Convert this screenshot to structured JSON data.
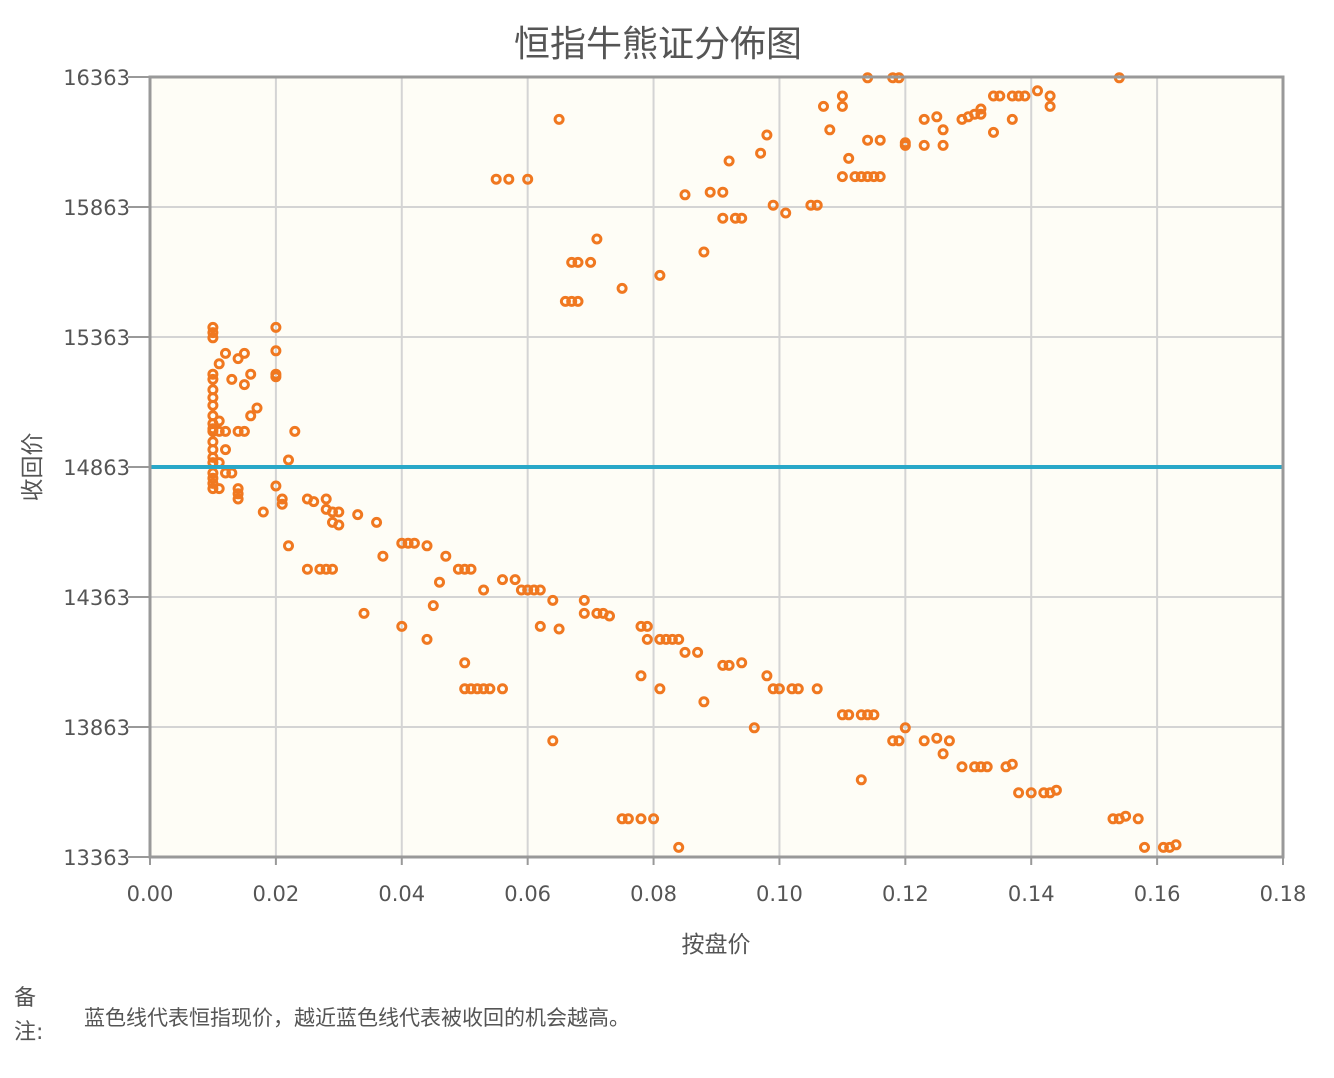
{
  "chart_data": {
    "type": "scatter",
    "title": "恒指牛熊证分佈图",
    "xlabel": "按盘价",
    "ylabel": "收回价",
    "xlim": [
      0.0,
      0.18
    ],
    "ylim": [
      13363,
      16363
    ],
    "x_ticks": [
      "0.00",
      "0.02",
      "0.04",
      "0.06",
      "0.08",
      "0.10",
      "0.12",
      "0.14",
      "0.16",
      "0.18"
    ],
    "y_ticks": [
      "13363",
      "13863",
      "14363",
      "14863",
      "15363",
      "15863",
      "16363"
    ],
    "grid": true,
    "reference_line": {
      "y": 14863,
      "color": "#29a8c8"
    },
    "point_color": "#f07820",
    "series": [
      {
        "points": [
          [
            0.01,
            15400
          ],
          [
            0.01,
            15380
          ],
          [
            0.01,
            15360
          ],
          [
            0.01,
            15220
          ],
          [
            0.01,
            15200
          ],
          [
            0.01,
            15160
          ],
          [
            0.01,
            15130
          ],
          [
            0.01,
            15100
          ],
          [
            0.01,
            15060
          ],
          [
            0.01,
            15030
          ],
          [
            0.01,
            15010
          ],
          [
            0.01,
            15000
          ],
          [
            0.01,
            14960
          ],
          [
            0.01,
            14930
          ],
          [
            0.01,
            14900
          ],
          [
            0.01,
            14880
          ],
          [
            0.01,
            14840
          ],
          [
            0.01,
            14820
          ],
          [
            0.01,
            14800
          ],
          [
            0.01,
            14780
          ],
          [
            0.011,
            15260
          ],
          [
            0.011,
            15040
          ],
          [
            0.011,
            15000
          ],
          [
            0.011,
            14880
          ],
          [
            0.011,
            14780
          ],
          [
            0.012,
            15300
          ],
          [
            0.012,
            15000
          ],
          [
            0.012,
            14930
          ],
          [
            0.012,
            14840
          ],
          [
            0.013,
            15200
          ],
          [
            0.013,
            14840
          ],
          [
            0.014,
            15280
          ],
          [
            0.014,
            15000
          ],
          [
            0.014,
            14780
          ],
          [
            0.014,
            14760
          ],
          [
            0.014,
            14740
          ],
          [
            0.015,
            15300
          ],
          [
            0.015,
            15180
          ],
          [
            0.015,
            15000
          ],
          [
            0.016,
            15220
          ],
          [
            0.016,
            15060
          ],
          [
            0.017,
            15090
          ],
          [
            0.018,
            14690
          ],
          [
            0.02,
            15400
          ],
          [
            0.02,
            15310
          ],
          [
            0.02,
            15220
          ],
          [
            0.02,
            15210
          ],
          [
            0.02,
            14790
          ],
          [
            0.021,
            14740
          ],
          [
            0.021,
            14720
          ],
          [
            0.022,
            14560
          ],
          [
            0.022,
            14890
          ],
          [
            0.023,
            15000
          ],
          [
            0.025,
            14740
          ],
          [
            0.025,
            14470
          ],
          [
            0.026,
            14730
          ],
          [
            0.027,
            14470
          ],
          [
            0.028,
            14740
          ],
          [
            0.028,
            14700
          ],
          [
            0.028,
            14470
          ],
          [
            0.029,
            14690
          ],
          [
            0.029,
            14650
          ],
          [
            0.029,
            14470
          ],
          [
            0.03,
            14690
          ],
          [
            0.03,
            14640
          ],
          [
            0.033,
            14680
          ],
          [
            0.034,
            14300
          ],
          [
            0.036,
            14650
          ],
          [
            0.037,
            14520
          ],
          [
            0.04,
            14570
          ],
          [
            0.04,
            14250
          ],
          [
            0.041,
            14570
          ],
          [
            0.042,
            14570
          ],
          [
            0.044,
            14560
          ],
          [
            0.044,
            14200
          ],
          [
            0.045,
            14330
          ],
          [
            0.046,
            14420
          ],
          [
            0.047,
            14520
          ],
          [
            0.049,
            14470
          ],
          [
            0.05,
            14470
          ],
          [
            0.05,
            14110
          ],
          [
            0.05,
            14010
          ],
          [
            0.051,
            14470
          ],
          [
            0.051,
            14010
          ],
          [
            0.052,
            14010
          ],
          [
            0.053,
            14390
          ],
          [
            0.053,
            14010
          ],
          [
            0.054,
            14010
          ],
          [
            0.055,
            15970
          ],
          [
            0.056,
            14430
          ],
          [
            0.056,
            14010
          ],
          [
            0.057,
            15970
          ],
          [
            0.058,
            14430
          ],
          [
            0.059,
            14390
          ],
          [
            0.06,
            15970
          ],
          [
            0.06,
            14390
          ],
          [
            0.061,
            14390
          ],
          [
            0.062,
            14390
          ],
          [
            0.062,
            14250
          ],
          [
            0.064,
            14350
          ],
          [
            0.064,
            13810
          ],
          [
            0.065,
            16200
          ],
          [
            0.065,
            14240
          ],
          [
            0.066,
            15500
          ],
          [
            0.067,
            15650
          ],
          [
            0.067,
            15500
          ],
          [
            0.068,
            15650
          ],
          [
            0.068,
            15500
          ],
          [
            0.069,
            14350
          ],
          [
            0.069,
            14300
          ],
          [
            0.07,
            15650
          ],
          [
            0.071,
            15740
          ],
          [
            0.071,
            14300
          ],
          [
            0.072,
            14300
          ],
          [
            0.073,
            14290
          ],
          [
            0.075,
            15550
          ],
          [
            0.075,
            13510
          ],
          [
            0.076,
            13510
          ],
          [
            0.078,
            14250
          ],
          [
            0.078,
            14060
          ],
          [
            0.078,
            13510
          ],
          [
            0.079,
            14250
          ],
          [
            0.079,
            14200
          ],
          [
            0.08,
            13510
          ],
          [
            0.081,
            15600
          ],
          [
            0.081,
            14200
          ],
          [
            0.081,
            14010
          ],
          [
            0.082,
            14200
          ],
          [
            0.083,
            14200
          ],
          [
            0.084,
            14200
          ],
          [
            0.084,
            13400
          ],
          [
            0.085,
            15910
          ],
          [
            0.085,
            14150
          ],
          [
            0.087,
            14150
          ],
          [
            0.088,
            15690
          ],
          [
            0.088,
            13960
          ],
          [
            0.089,
            15920
          ],
          [
            0.091,
            15920
          ],
          [
            0.091,
            15820
          ],
          [
            0.091,
            14100
          ],
          [
            0.092,
            16040
          ],
          [
            0.092,
            14100
          ],
          [
            0.093,
            15820
          ],
          [
            0.094,
            15820
          ],
          [
            0.094,
            14110
          ],
          [
            0.096,
            13860
          ],
          [
            0.097,
            16070
          ],
          [
            0.098,
            16140
          ],
          [
            0.098,
            14060
          ],
          [
            0.099,
            15870
          ],
          [
            0.099,
            14010
          ],
          [
            0.1,
            14010
          ],
          [
            0.101,
            15840
          ],
          [
            0.102,
            14010
          ],
          [
            0.103,
            14010
          ],
          [
            0.105,
            15870
          ],
          [
            0.106,
            15870
          ],
          [
            0.106,
            14010
          ],
          [
            0.107,
            16250
          ],
          [
            0.108,
            16160
          ],
          [
            0.11,
            16290
          ],
          [
            0.11,
            16250
          ],
          [
            0.11,
            15980
          ],
          [
            0.11,
            13910
          ],
          [
            0.111,
            16050
          ],
          [
            0.111,
            13910
          ],
          [
            0.112,
            15980
          ],
          [
            0.113,
            15980
          ],
          [
            0.113,
            13910
          ],
          [
            0.113,
            13660
          ],
          [
            0.114,
            16360
          ],
          [
            0.114,
            16120
          ],
          [
            0.114,
            15980
          ],
          [
            0.114,
            13910
          ],
          [
            0.115,
            15980
          ],
          [
            0.115,
            13910
          ],
          [
            0.116,
            16120
          ],
          [
            0.116,
            15980
          ],
          [
            0.118,
            16360
          ],
          [
            0.118,
            13810
          ],
          [
            0.119,
            16360
          ],
          [
            0.119,
            13810
          ],
          [
            0.12,
            16110
          ],
          [
            0.12,
            16100
          ],
          [
            0.12,
            13860
          ],
          [
            0.123,
            16200
          ],
          [
            0.123,
            16100
          ],
          [
            0.123,
            13810
          ],
          [
            0.125,
            16210
          ],
          [
            0.125,
            13820
          ],
          [
            0.126,
            16160
          ],
          [
            0.126,
            16100
          ],
          [
            0.126,
            13760
          ],
          [
            0.127,
            13810
          ],
          [
            0.129,
            16200
          ],
          [
            0.129,
            13710
          ],
          [
            0.13,
            16210
          ],
          [
            0.131,
            16220
          ],
          [
            0.131,
            13710
          ],
          [
            0.132,
            16240
          ],
          [
            0.132,
            16220
          ],
          [
            0.132,
            13710
          ],
          [
            0.133,
            13710
          ],
          [
            0.134,
            16290
          ],
          [
            0.134,
            16150
          ],
          [
            0.135,
            16290
          ],
          [
            0.136,
            13710
          ],
          [
            0.137,
            16290
          ],
          [
            0.137,
            16200
          ],
          [
            0.137,
            13720
          ],
          [
            0.138,
            16290
          ],
          [
            0.138,
            13610
          ],
          [
            0.139,
            16290
          ],
          [
            0.14,
            13610
          ],
          [
            0.141,
            16310
          ],
          [
            0.142,
            13610
          ],
          [
            0.143,
            16290
          ],
          [
            0.143,
            16250
          ],
          [
            0.143,
            13610
          ],
          [
            0.144,
            13620
          ],
          [
            0.153,
            13510
          ],
          [
            0.154,
            16360
          ],
          [
            0.154,
            13510
          ],
          [
            0.155,
            13520
          ],
          [
            0.157,
            13510
          ],
          [
            0.158,
            13400
          ],
          [
            0.161,
            13400
          ],
          [
            0.162,
            13400
          ],
          [
            0.163,
            13410
          ]
        ]
      }
    ]
  },
  "note": {
    "label": "备注:",
    "text": "蓝色线代表恒指现价，越近蓝色线代表被收回的机会越高。"
  }
}
